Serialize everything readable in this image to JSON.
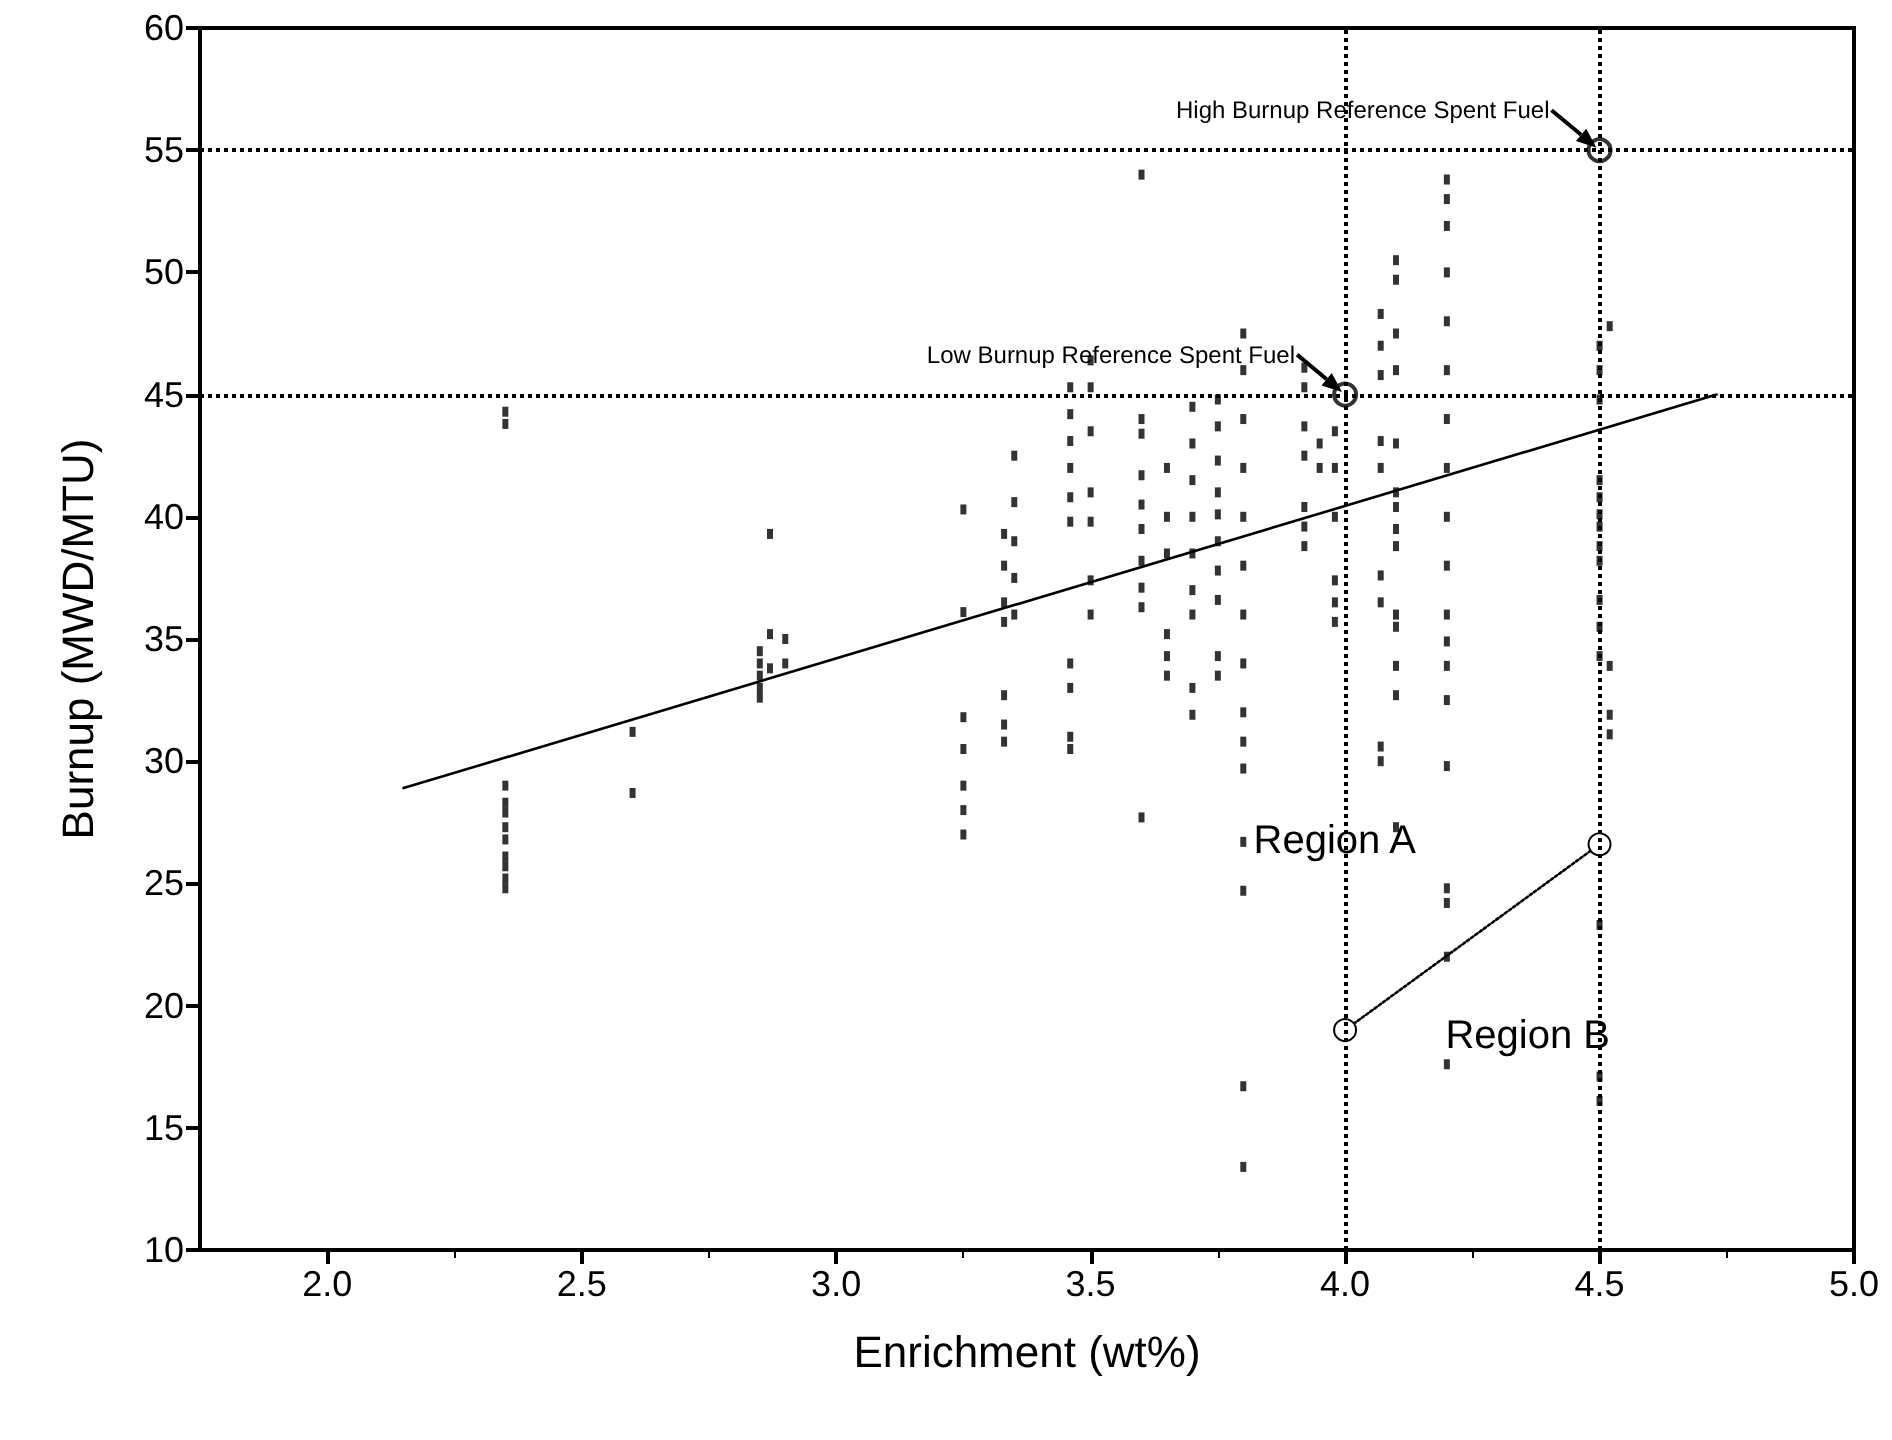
{
  "chart_data": {
    "type": "scatter",
    "xlabel": "Enrichment (wt%)",
    "ylabel": "Burnup (MWD/MTU)",
    "xlim": [
      1.75,
      5.0
    ],
    "ylim": [
      10,
      60
    ],
    "xticks": [
      {
        "value": 2,
        "label": "2.0"
      },
      {
        "value": 2.5,
        "label": "2.5"
      },
      {
        "value": 3,
        "label": "3.0"
      },
      {
        "value": 3.5,
        "label": "3.5"
      },
      {
        "value": 4,
        "label": "4.0"
      },
      {
        "value": 4.5,
        "label": "4.5"
      },
      {
        "value": 5,
        "label": "5.0"
      }
    ],
    "yticks": [
      10,
      15,
      20,
      25,
      30,
      35,
      40,
      45,
      50,
      55,
      60
    ],
    "grid": false,
    "series": [
      {
        "marker": "square",
        "color": "#000000",
        "x": [
          2.35,
          2.35,
          2.35,
          2.35,
          2.35,
          2.35,
          2.35,
          2.35,
          2.35,
          2.35,
          2.35,
          2.6,
          2.6,
          2.85,
          2.85,
          2.85,
          2.85,
          2.85,
          2.87,
          2.87,
          2.87,
          2.9,
          2.9,
          3.25,
          3.25,
          3.25,
          3.25,
          3.25,
          3.25,
          3.25,
          3.33,
          3.33,
          3.33,
          3.33,
          3.33,
          3.33,
          3.33,
          3.35,
          3.35,
          3.35,
          3.35,
          3.35,
          3.46,
          3.46,
          3.46,
          3.46,
          3.46,
          3.46,
          3.46,
          3.46,
          3.46,
          3.46,
          3.5,
          3.5,
          3.5,
          3.5,
          3.5,
          3.5,
          3.5,
          3.6,
          3.6,
          3.6,
          3.6,
          3.6,
          3.6,
          3.6,
          3.6,
          3.6,
          3.6,
          3.65,
          3.65,
          3.65,
          3.65,
          3.65,
          3.65,
          3.7,
          3.7,
          3.7,
          3.7,
          3.7,
          3.7,
          3.7,
          3.7,
          3.7,
          3.75,
          3.75,
          3.75,
          3.75,
          3.75,
          3.75,
          3.75,
          3.75,
          3.75,
          3.75,
          3.8,
          3.8,
          3.8,
          3.8,
          3.8,
          3.8,
          3.8,
          3.8,
          3.8,
          3.8,
          3.8,
          3.8,
          3.8,
          3.8,
          3.8,
          3.92,
          3.92,
          3.92,
          3.92,
          3.92,
          3.92,
          3.92,
          3.95,
          3.95,
          3.98,
          3.98,
          3.98,
          3.98,
          3.98,
          3.98,
          4.07,
          4.07,
          4.07,
          4.07,
          4.07,
          4.07,
          4.07,
          4.07,
          4.07,
          4.1,
          4.1,
          4.1,
          4.1,
          4.1,
          4.1,
          4.1,
          4.1,
          4.1,
          4.1,
          4.1,
          4.1,
          4.1,
          4.1,
          4.2,
          4.2,
          4.2,
          4.2,
          4.2,
          4.2,
          4.2,
          4.2,
          4.2,
          4.2,
          4.2,
          4.2,
          4.2,
          4.2,
          4.2,
          4.2,
          4.2,
          4.2,
          4.2,
          4.5,
          4.5,
          4.5,
          4.5,
          4.5,
          4.5,
          4.5,
          4.5,
          4.5,
          4.5,
          4.5,
          4.5,
          4.5,
          4.5,
          4.5,
          4.52,
          4.52,
          4.52,
          4.52
        ],
        "values": [
          44.3,
          43.8,
          29.0,
          28.3,
          27.9,
          27.3,
          26.8,
          26.1,
          25.7,
          25.2,
          24.8,
          31.2,
          28.7,
          34.5,
          34.0,
          33.5,
          33.0,
          32.6,
          39.3,
          35.2,
          33.8,
          35.0,
          34.0,
          40.3,
          36.1,
          31.8,
          30.5,
          29.0,
          28.0,
          27.0,
          39.3,
          38.0,
          36.5,
          35.7,
          32.7,
          31.5,
          30.8,
          42.5,
          40.6,
          39.0,
          37.5,
          36.0,
          45.3,
          44.2,
          43.1,
          42.0,
          40.8,
          39.8,
          34.0,
          33.0,
          31.0,
          30.5,
          46.4,
          45.3,
          43.5,
          41.0,
          39.8,
          37.4,
          36.0,
          54.0,
          44.0,
          43.4,
          41.7,
          40.5,
          39.5,
          38.2,
          37.1,
          36.3,
          27.7,
          42.0,
          40.0,
          38.5,
          35.2,
          34.3,
          33.5,
          44.5,
          43.0,
          41.5,
          40.0,
          38.5,
          37.0,
          36.0,
          33.0,
          31.9,
          44.8,
          43.7,
          42.3,
          41.0,
          40.1,
          39.0,
          37.8,
          36.6,
          34.3,
          33.5,
          47.5,
          46.0,
          44.0,
          42.0,
          40.0,
          38.0,
          36.0,
          34.0,
          32.0,
          30.8,
          29.7,
          26.7,
          24.7,
          16.7,
          13.4,
          46.1,
          45.3,
          43.7,
          42.5,
          40.4,
          39.6,
          38.8,
          43.0,
          42.0,
          43.5,
          42.0,
          40.0,
          37.4,
          36.5,
          35.7,
          48.3,
          47.0,
          45.8,
          43.1,
          42.0,
          37.6,
          36.5,
          30.6,
          30.0,
          50.5,
          49.7,
          47.5,
          46.0,
          43.0,
          41.0,
          40.4,
          39.5,
          38.8,
          36.0,
          35.5,
          33.9,
          32.7,
          27.3,
          53.8,
          53.0,
          51.9,
          50.0,
          48.0,
          46.0,
          44.0,
          42.0,
          40.0,
          38.0,
          36.0,
          34.9,
          33.9,
          32.5,
          29.8,
          24.8,
          24.2,
          22.0,
          17.6,
          47.0,
          46.0,
          44.8,
          41.5,
          40.8,
          40.1,
          39.6,
          38.8,
          38.2,
          36.6,
          35.5,
          34.3,
          23.3,
          17.1,
          16.1,
          47.8,
          33.9,
          31.9,
          31.1
        ]
      },
      {
        "type": "line",
        "marker": "none",
        "line_style": "solid",
        "color": "#000000",
        "x": [
          2.15,
          4.73
        ],
        "values": [
          28.9,
          45.0
        ]
      },
      {
        "type": "scatter",
        "marker": "circle",
        "color": "#000000",
        "x": [
          4.0,
          4.5
        ],
        "values": [
          45.0,
          55.0
        ]
      },
      {
        "type": "line",
        "marker": "circle",
        "line_style": "dotted",
        "color": "#000000",
        "x": [
          4.0,
          4.5
        ],
        "values": [
          19.0,
          26.6
        ]
      }
    ],
    "ref_lines": [
      {
        "axis": "y",
        "value": 45,
        "line_style": "dotted",
        "color": "#000000"
      },
      {
        "axis": "y",
        "value": 55,
        "line_style": "dotted",
        "color": "#000000"
      },
      {
        "axis": "x",
        "value": 4.0,
        "line_style": "dotted",
        "color": "#000000"
      },
      {
        "axis": "x",
        "value": 4.5,
        "line_style": "dotted",
        "color": "#000000"
      }
    ],
    "annotations": [
      {
        "text": "High Burnup Reference Spent Fuel",
        "x": 4.5,
        "y": 55
      },
      {
        "text": "Low Burnup Reference Spent Fuel",
        "x": 4.0,
        "y": 45
      },
      "Region A",
      "Region B"
    ]
  }
}
